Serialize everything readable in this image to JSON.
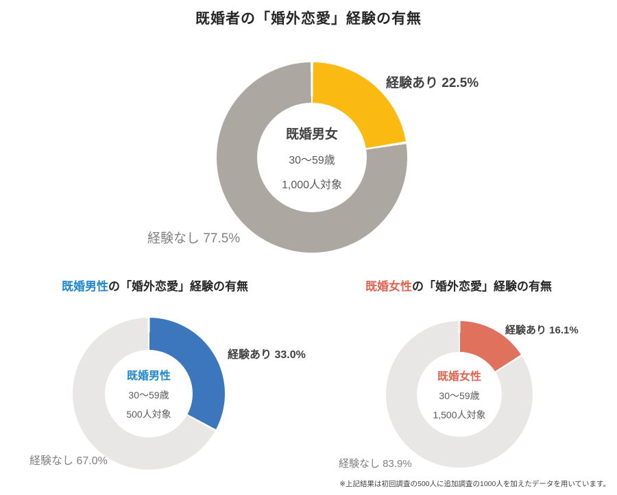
{
  "title": "既婚者の「婚外恋愛」経験の有無",
  "footnote": "※上記結果は初回調査の500人に追加調査の1000人を加えたデータを用いています。",
  "colors": {
    "dark_text": "#404040",
    "muted_text": "#808080",
    "center_sub_text": "#595959",
    "yellow": "#FBBA12",
    "dark_gray": "#ACA7A1",
    "light_gray": "#E8E7E6",
    "blue_slice": "#3C76BC",
    "blue_text": "#1E87C9",
    "coral_slice": "#E0715C",
    "coral_text": "#DF6450"
  },
  "chart_data": [
    {
      "type": "pie",
      "variant": "donut",
      "title": "既婚者の「婚外恋愛」経験の有無",
      "categories": [
        "経験あり",
        "経験なし"
      ],
      "values": [
        22.5,
        77.5
      ],
      "colors": [
        "#FBBA12",
        "#ACA7A1"
      ],
      "slice_labels": [
        "経験あり 22.5%",
        "経験なし 77.5%"
      ],
      "center": {
        "line1": "既婚男女",
        "line2": "30〜59歳",
        "line3": "1,000人対象",
        "line1_color": "#404040"
      },
      "legend": "none",
      "start_angle_deg": 0,
      "direction": "clockwise"
    },
    {
      "type": "pie",
      "variant": "donut",
      "title": "既婚男性の「婚外恋愛」経験の有無",
      "heading": {
        "colored": "既婚男性",
        "rest": "の「婚外恋愛」経験の有無",
        "color": "#1E87C9"
      },
      "categories": [
        "経験あり",
        "経験なし"
      ],
      "values": [
        33.0,
        67.0
      ],
      "colors": [
        "#3C76BC",
        "#E8E7E6"
      ],
      "slice_labels": [
        "経験あり 33.0%",
        "経験なし 67.0%"
      ],
      "center": {
        "line1": "既婚男性",
        "line2": "30〜59歳",
        "line3": "500人対象",
        "line1_color": "#1E87C9"
      },
      "legend": "none",
      "start_angle_deg": 0,
      "direction": "clockwise"
    },
    {
      "type": "pie",
      "variant": "donut",
      "title": "既婚女性の「婚外恋愛」経験の有無",
      "heading": {
        "colored": "既婚女性",
        "rest": "の「婚外恋愛」経験の有無",
        "color": "#DF6450"
      },
      "categories": [
        "経験あり",
        "経験なし"
      ],
      "values": [
        16.1,
        83.9
      ],
      "colors": [
        "#E0715C",
        "#E8E7E6"
      ],
      "slice_labels": [
        "経験あり 16.1%",
        "経験なし 83.9%"
      ],
      "center": {
        "line1": "既婚女性",
        "line2": "30〜59歳",
        "line3": "1,500人対象",
        "line1_color": "#DF6450"
      },
      "legend": "none",
      "start_angle_deg": 0,
      "direction": "clockwise"
    }
  ]
}
